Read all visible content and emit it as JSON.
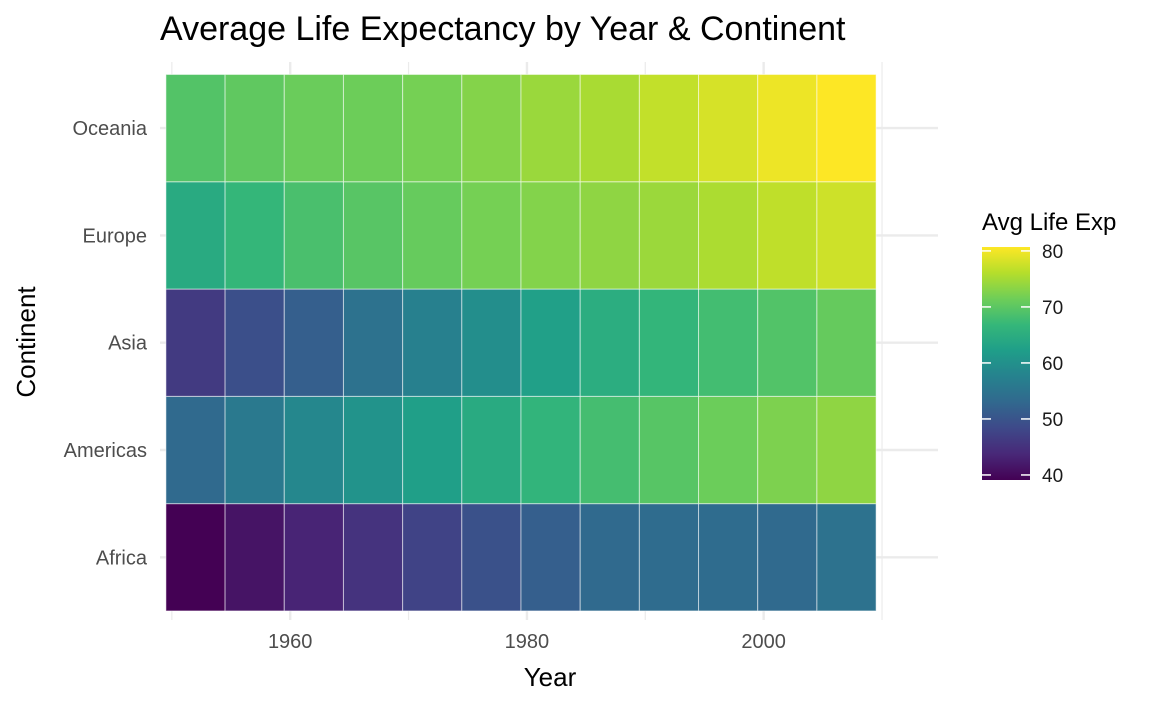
{
  "chart_data": {
    "type": "heatmap",
    "title": "Average Life Expectancy by Year & Continent",
    "xlabel": "Year",
    "ylabel": "Continent",
    "x": [
      1952,
      1957,
      1962,
      1967,
      1972,
      1977,
      1982,
      1987,
      1992,
      1997,
      2002,
      2007
    ],
    "x_ticks": [
      1960,
      1980,
      2000
    ],
    "xlim": [
      1950,
      2010
    ],
    "categories": [
      "Africa",
      "Americas",
      "Asia",
      "Europe",
      "Oceania"
    ],
    "series": [
      {
        "name": "Africa",
        "values": [
          39.1,
          41.3,
          43.3,
          45.3,
          47.5,
          49.6,
          51.6,
          53.3,
          53.6,
          53.6,
          53.3,
          54.8
        ]
      },
      {
        "name": "Americas",
        "values": [
          53.3,
          56.0,
          58.4,
          60.4,
          62.4,
          64.4,
          66.2,
          68.1,
          69.6,
          71.2,
          72.4,
          73.6
        ]
      },
      {
        "name": "Asia",
        "values": [
          46.3,
          49.3,
          51.6,
          54.7,
          57.3,
          59.6,
          62.6,
          64.9,
          66.5,
          68.0,
          69.2,
          70.7
        ]
      },
      {
        "name": "Europe",
        "values": [
          64.4,
          66.7,
          68.5,
          69.7,
          70.8,
          71.9,
          72.8,
          73.6,
          74.4,
          75.5,
          76.7,
          77.6
        ]
      },
      {
        "name": "Oceania",
        "values": [
          69.3,
          70.3,
          71.1,
          71.3,
          71.9,
          72.9,
          74.3,
          75.3,
          76.9,
          78.2,
          79.7,
          80.7
        ]
      }
    ],
    "legend": {
      "title": "Avg Life Exp",
      "ticks": [
        40,
        50,
        60,
        70,
        80
      ],
      "range": [
        39.1,
        80.7
      ],
      "placement": "right",
      "colormap": "viridis"
    },
    "grid": true,
    "colors": {
      "background": "#ffffff",
      "grid": "#ebebeb",
      "tile_border": "#ffffff"
    }
  }
}
